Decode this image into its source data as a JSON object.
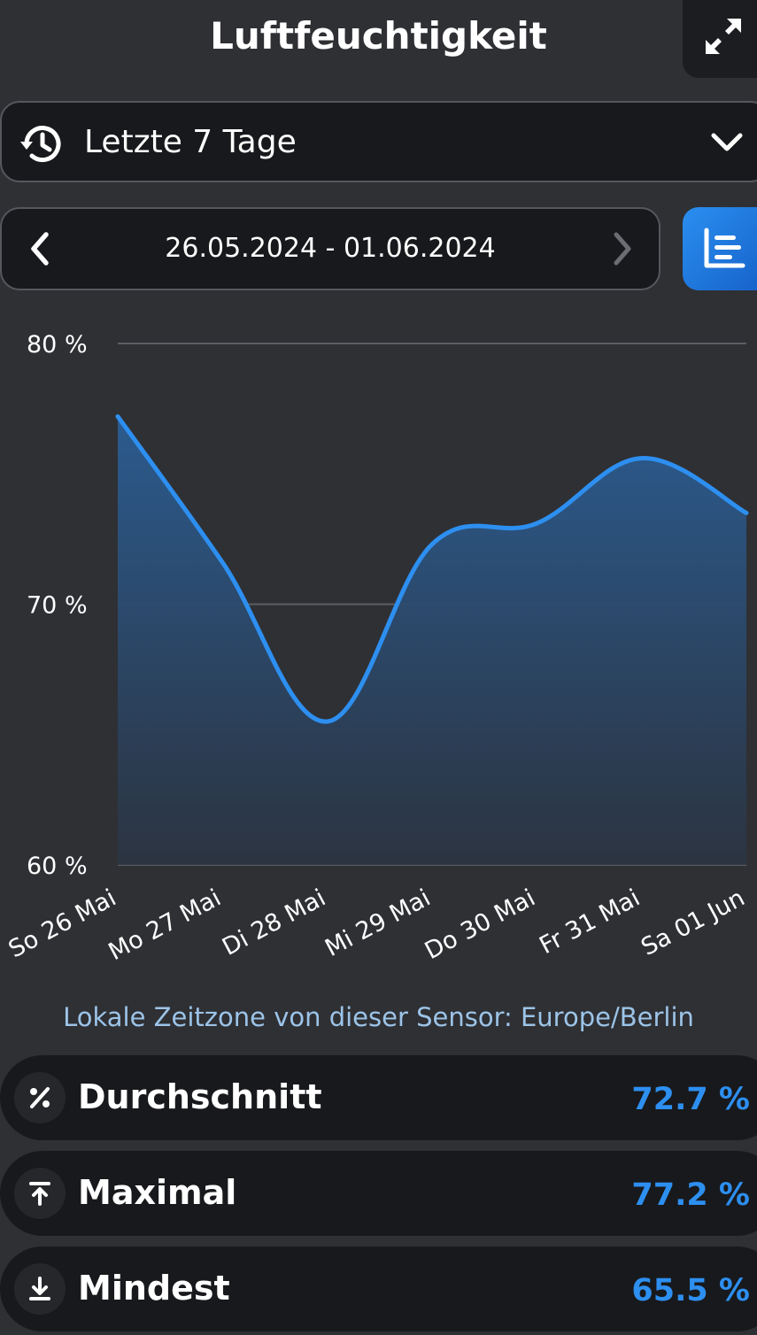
{
  "header": {
    "title": "Luftfeuchtigkeit",
    "expand_icon": "expand-arrows-icon"
  },
  "range_select": {
    "icon": "history-icon",
    "label": "Letzte 7 Tage",
    "dropdown_icon": "chevron-down-icon"
  },
  "date_nav": {
    "range": "26.05.2024 - 01.06.2024",
    "prev_icon": "chevron-left-icon",
    "next_icon": "chevron-right-icon"
  },
  "view_toggle": {
    "icon": "bar-chart-icon",
    "color": "#1f7ae0"
  },
  "chart_data": {
    "type": "area",
    "categories": [
      "So 26 Mai",
      "Mo 27 Mai",
      "Di 28 Mai",
      "Mi 29 Mai",
      "Do 30 Mai",
      "Fr 31 Mai",
      "Sa 01 Jun"
    ],
    "series": [
      {
        "values": [
          77.2,
          71.6,
          65.5,
          72.3,
          73.1,
          75.6,
          73.5
        ]
      }
    ],
    "y_ticks": [
      "80 %",
      "70 %",
      "60 %"
    ],
    "ylim": [
      60,
      80
    ],
    "grid": true,
    "line_color": "#2d8ff0"
  },
  "timezone_note": "Lokale Zeitzone von dieser Sensor: Europe/Berlin",
  "stats": [
    {
      "icon": "percent-icon",
      "label": "Durchschnitt",
      "value": "72.7 %"
    },
    {
      "icon": "arrow-up-to-line-icon",
      "label": "Maximal",
      "value": "77.2 %"
    },
    {
      "icon": "arrow-down-to-line-icon",
      "label": "Mindest",
      "value": "65.5 %"
    }
  ]
}
